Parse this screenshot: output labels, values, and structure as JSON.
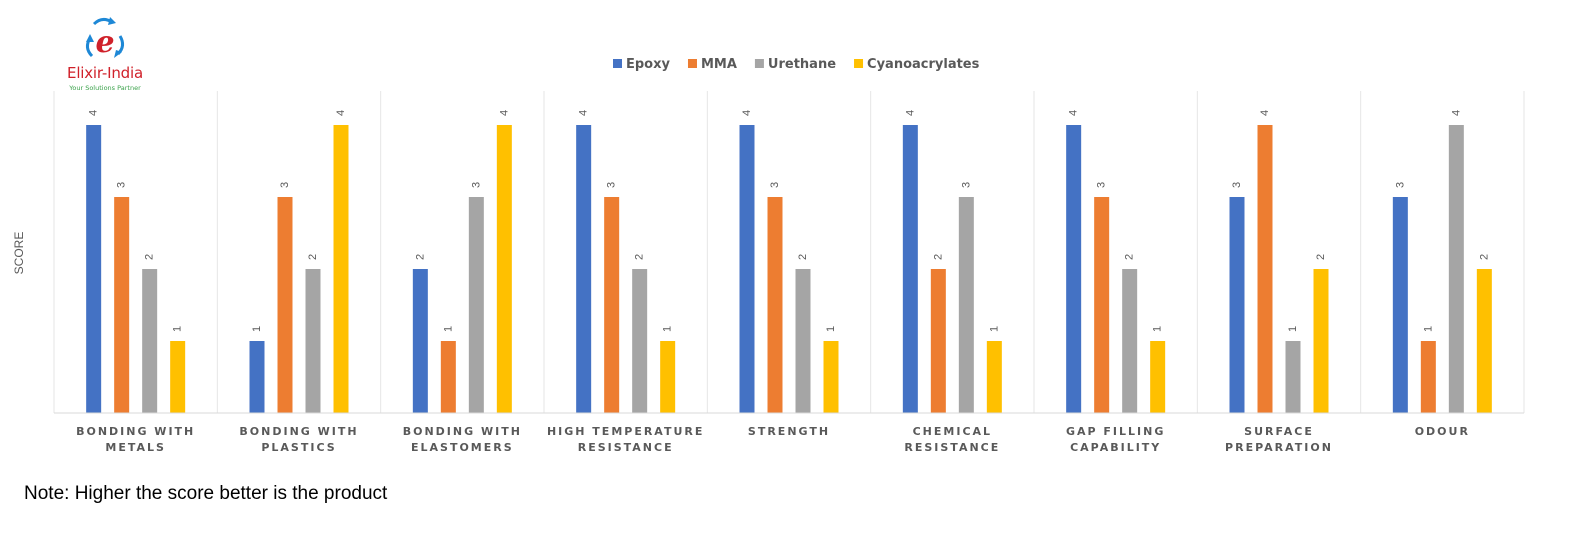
{
  "logo": {
    "name": "Elixir-India",
    "tagline": "Your Solutions Partner",
    "colors": {
      "e": "#d0212a",
      "arrows": "#1e88d6",
      "tagline": "#3aa24a"
    }
  },
  "note": "Note: Higher the score better is the product",
  "chart_data": {
    "type": "bar",
    "title": "",
    "xlabel": "",
    "ylabel": "SCORE",
    "ylim": [
      0,
      4
    ],
    "grid": false,
    "legend_position": "top",
    "categories": [
      [
        "BONDING WITH",
        "METALS"
      ],
      [
        "BONDING WITH",
        "PLASTICS"
      ],
      [
        "BONDING WITH",
        "ELASTOMERS"
      ],
      [
        "HIGH TEMPERATURE",
        "RESISTANCE"
      ],
      [
        "STRENGTH"
      ],
      [
        "CHEMICAL",
        "RESISTANCE"
      ],
      [
        "GAP FILLING",
        "CAPABILITY"
      ],
      [
        "SURFACE",
        "PREPARATION"
      ],
      [
        "ODOUR"
      ]
    ],
    "series": [
      {
        "name": "Epoxy",
        "color": "#4472c4",
        "values": [
          4,
          1,
          2,
          4,
          4,
          4,
          4,
          3,
          3
        ]
      },
      {
        "name": "MMA",
        "color": "#ed7d31",
        "values": [
          3,
          3,
          1,
          3,
          3,
          2,
          3,
          4,
          1
        ]
      },
      {
        "name": "Urethane",
        "color": "#a5a5a5",
        "values": [
          2,
          2,
          3,
          2,
          2,
          3,
          2,
          1,
          4
        ]
      },
      {
        "name": "Cyanoacrylates",
        "color": "#ffc000",
        "values": [
          1,
          4,
          4,
          1,
          1,
          1,
          1,
          2,
          2
        ]
      }
    ]
  }
}
